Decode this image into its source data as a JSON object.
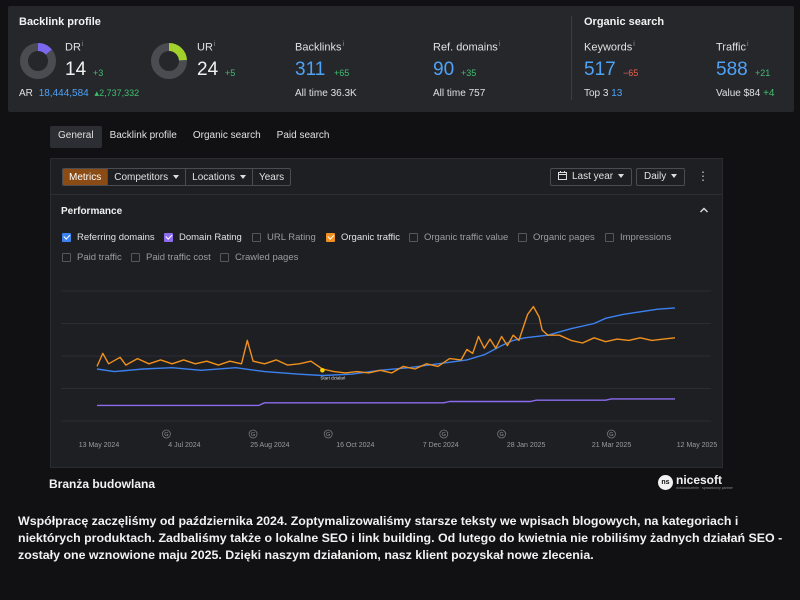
{
  "backlink_profile": {
    "title": "Backlink profile",
    "dr": {
      "label": "DR",
      "info": "i",
      "value": "14",
      "delta": "+3",
      "gauge": 0.14,
      "color": "#7b68ee"
    },
    "ar": {
      "label": "AR",
      "value": "18,444,584",
      "delta": "2,737,332"
    },
    "ur": {
      "label": "UR",
      "info": "i",
      "value": "24",
      "delta": "+5",
      "gauge": 0.24,
      "color": "#a3d12c"
    },
    "backlinks": {
      "label": "Backlinks",
      "info": "i",
      "value": "311",
      "delta": "+65",
      "alltime_label": "All time",
      "alltime_value": "36.3K"
    },
    "ref_domains": {
      "label": "Ref. domains",
      "info": "i",
      "value": "90",
      "delta": "+35",
      "alltime_label": "All time",
      "alltime_value": "757"
    }
  },
  "organic_search": {
    "title": "Organic search",
    "keywords": {
      "label": "Keywords",
      "info": "i",
      "value": "517",
      "delta": "−65",
      "top_label": "Top 3",
      "top_value": "13"
    },
    "traffic": {
      "label": "Traffic",
      "info": "i",
      "value": "588",
      "delta": "+21",
      "value_label": "Value",
      "value_amount": "$84",
      "value_delta": "+4"
    }
  },
  "tabs": [
    "General",
    "Backlink profile",
    "Organic search",
    "Paid search"
  ],
  "toolbar": {
    "segments": [
      "Metrics",
      "Competitors",
      "Locations",
      "Years"
    ],
    "period": "Last year",
    "interval": "Daily",
    "more_icon": "kebab-icon"
  },
  "performance": {
    "title": "Performance",
    "options": [
      {
        "label": "Referring domains",
        "checked": true,
        "color": "#3b82f0"
      },
      {
        "label": "Domain Rating",
        "checked": true,
        "color": "#8b6cf0"
      },
      {
        "label": "URL Rating",
        "checked": false
      },
      {
        "label": "Organic traffic",
        "checked": true,
        "color": "#f0901e"
      },
      {
        "label": "Organic traffic value",
        "checked": false
      },
      {
        "label": "Organic pages",
        "checked": false
      },
      {
        "label": "Impressions",
        "checked": false
      },
      {
        "label": "Paid traffic",
        "checked": false
      },
      {
        "label": "Paid traffic cost",
        "checked": false
      },
      {
        "label": "Crawled pages",
        "checked": false
      }
    ]
  },
  "chart_data": {
    "type": "line",
    "x_ticks": [
      "13 May 2024",
      "4 Jul 2024",
      "25 Aug 2024",
      "16 Oct 2024",
      "7 Dec 2024",
      "28 Jan 2025",
      "21 Mar 2025",
      "12 May 2025"
    ],
    "annotation_markers": [
      "G",
      "G",
      "G",
      "G",
      "G",
      "G"
    ],
    "annotation_label": "Start działań",
    "grid": true,
    "series": [
      {
        "name": "Referring domains",
        "color": "#3b82f0",
        "values": [
          [
            0,
            0.4
          ],
          [
            0.03,
            0.38
          ],
          [
            0.08,
            0.4
          ],
          [
            0.13,
            0.41
          ],
          [
            0.18,
            0.39
          ],
          [
            0.24,
            0.41
          ],
          [
            0.29,
            0.38
          ],
          [
            0.35,
            0.36
          ],
          [
            0.39,
            0.35
          ],
          [
            0.44,
            0.36
          ],
          [
            0.49,
            0.39
          ],
          [
            0.54,
            0.41
          ],
          [
            0.59,
            0.44
          ],
          [
            0.64,
            0.47
          ],
          [
            0.67,
            0.51
          ],
          [
            0.7,
            0.58
          ],
          [
            0.72,
            0.62
          ],
          [
            0.74,
            0.64
          ],
          [
            0.78,
            0.66
          ],
          [
            0.82,
            0.71
          ],
          [
            0.86,
            0.75
          ],
          [
            0.88,
            0.79
          ],
          [
            0.91,
            0.82
          ],
          [
            0.94,
            0.84
          ],
          [
            0.97,
            0.86
          ],
          [
            1,
            0.87
          ]
        ]
      },
      {
        "name": "Domain Rating",
        "color": "#8b6cf0",
        "values": [
          [
            0,
            0.12
          ],
          [
            0.28,
            0.12
          ],
          [
            0.29,
            0.14
          ],
          [
            0.6,
            0.14
          ],
          [
            0.61,
            0.15
          ],
          [
            0.75,
            0.15
          ],
          [
            0.76,
            0.16
          ],
          [
            0.88,
            0.16
          ],
          [
            0.89,
            0.17
          ],
          [
            1,
            0.17
          ]
        ]
      },
      {
        "name": "Organic traffic",
        "color": "#f0901e",
        "values": [
          [
            0,
            0.42
          ],
          [
            0.01,
            0.52
          ],
          [
            0.02,
            0.44
          ],
          [
            0.04,
            0.49
          ],
          [
            0.05,
            0.43
          ],
          [
            0.07,
            0.48
          ],
          [
            0.09,
            0.44
          ],
          [
            0.11,
            0.47
          ],
          [
            0.13,
            0.44
          ],
          [
            0.15,
            0.47
          ],
          [
            0.17,
            0.44
          ],
          [
            0.19,
            0.46
          ],
          [
            0.21,
            0.43
          ],
          [
            0.23,
            0.46
          ],
          [
            0.25,
            0.44
          ],
          [
            0.26,
            0.62
          ],
          [
            0.27,
            0.46
          ],
          [
            0.29,
            0.44
          ],
          [
            0.31,
            0.47
          ],
          [
            0.33,
            0.43
          ],
          [
            0.35,
            0.44
          ],
          [
            0.37,
            0.46
          ],
          [
            0.39,
            0.4
          ],
          [
            0.41,
            0.38
          ],
          [
            0.43,
            0.37
          ],
          [
            0.45,
            0.38
          ],
          [
            0.47,
            0.37
          ],
          [
            0.49,
            0.39
          ],
          [
            0.51,
            0.37
          ],
          [
            0.53,
            0.42
          ],
          [
            0.55,
            0.4
          ],
          [
            0.57,
            0.44
          ],
          [
            0.59,
            0.42
          ],
          [
            0.61,
            0.48
          ],
          [
            0.63,
            0.47
          ],
          [
            0.64,
            0.55
          ],
          [
            0.65,
            0.52
          ],
          [
            0.66,
            0.65
          ],
          [
            0.67,
            0.56
          ],
          [
            0.68,
            0.63
          ],
          [
            0.69,
            0.56
          ],
          [
            0.7,
            0.65
          ],
          [
            0.71,
            0.58
          ],
          [
            0.72,
            0.66
          ],
          [
            0.73,
            0.62
          ],
          [
            0.745,
            0.82
          ],
          [
            0.755,
            0.88
          ],
          [
            0.765,
            0.8
          ],
          [
            0.77,
            0.7
          ],
          [
            0.78,
            0.66
          ],
          [
            0.8,
            0.66
          ],
          [
            0.82,
            0.62
          ],
          [
            0.84,
            0.6
          ],
          [
            0.86,
            0.64
          ],
          [
            0.88,
            0.61
          ],
          [
            0.9,
            0.63
          ],
          [
            0.92,
            0.62
          ],
          [
            0.94,
            0.64
          ],
          [
            0.96,
            0.62
          ],
          [
            0.98,
            0.63
          ],
          [
            1,
            0.64
          ]
        ]
      }
    ]
  },
  "caption": "Branża budowlana",
  "logo": {
    "mark": "ns",
    "name": "nicesoft",
    "tagline": "doświadczenie · sprawdzony partner"
  },
  "description": "Współpracę zaczęliśmy od października 2024.  Zoptymalizowaliśmy starsze teksty we wpisach blogowych, na kategoriach i niektórych produktach.  Zadbaliśmy także o lokalne SEO i link building.  Od lutego do kwietnia nie robiliśmy żadnych działań SEO - zostały one wznowione maju 2025. Dzięki naszym działaniom, nasz klient pozyskał nowe zlecenia."
}
